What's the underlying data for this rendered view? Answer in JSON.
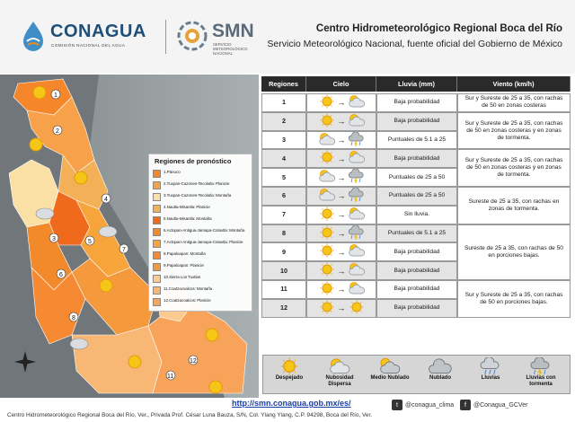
{
  "header": {
    "conagua_name": "CONAGUA",
    "conagua_sub": "COMISIÓN NACIONAL DEL AGUA",
    "smn_name": "SMN",
    "smn_sub": "SERVICIO METEOROLÓGICO NACIONAL",
    "title": "Centro Hidrometeorológico Regional Boca del Río",
    "subtitle": "Servicio Meteorológico Nacional, fuente oficial del Gobierno de México"
  },
  "map": {
    "legend_title": "Regiones de pronóstico",
    "regions": [
      {
        "label": "1.Pánuco",
        "color": "#f5862a"
      },
      {
        "label": "2.Tuxpan-Cazones-Tecolutla: Planicie",
        "color": "#f7a14a"
      },
      {
        "label": "3.Tuxpan-Cazones-Tecolutla: Montaña",
        "color": "#fbe0a5"
      },
      {
        "label": "4.Nautla-Misantla: Planicie",
        "color": "#f3b056"
      },
      {
        "label": "5.Nautla-Misantla: Montaña",
        "color": "#f06a1d"
      },
      {
        "label": "6.Actopan-Antigua-Jamapa-Cotaxtla: Montaña",
        "color": "#f28a2c"
      },
      {
        "label": "7.Actopan-Antigua-Jamapa-Cotaxtla: Planicie",
        "color": "#f7a53b"
      },
      {
        "label": "8.Papaloapan: Montaña",
        "color": "#f58a33"
      },
      {
        "label": "9.Papaloapan: Planicie",
        "color": "#f49a3c"
      },
      {
        "label": "10.Sierra Los Tuxtlas",
        "color": "#fcc98f"
      },
      {
        "label": "11.Coatzacoalcos: Montaña",
        "color": "#f9b776"
      },
      {
        "label": "12.Coatzacoalcos: Planicie",
        "color": "#f7a45a"
      }
    ],
    "place_labels": [
      "Pánuco",
      "Tuxpan",
      "Xicotepec de Juárez",
      "Huauchinango",
      "Martínez de la Torre",
      "Perote",
      "Xalapa",
      "Veracruz",
      "Orizaba",
      "Alvarado",
      "Cosamaloapan",
      "San Andrés Tuxtla",
      "Acayucan",
      "Coatzacoalcos",
      "Minatitlán",
      "Las Choapas",
      "Tierra Blanca",
      "Catemaco"
    ]
  },
  "table": {
    "headers": {
      "regiones": "Regiones",
      "cielo": "Cielo",
      "lluvia": "Lluvia (mm)",
      "viento": "Viento (km/h)"
    },
    "rows": [
      {
        "region": "1",
        "from": "sunny",
        "to": "cloudy",
        "lluvia": "Baja probabilidad"
      },
      {
        "region": "2",
        "from": "sunny",
        "to": "cloudy",
        "lluvia": "Baja probabilidad"
      },
      {
        "region": "3",
        "from": "cloudy",
        "to": "storm",
        "lluvia": "Puntuales de 5.1 a 25"
      },
      {
        "region": "4",
        "from": "sunny",
        "to": "cloudy",
        "lluvia": "Baja probabilidad"
      },
      {
        "region": "5",
        "from": "cloudy",
        "to": "storm",
        "lluvia": "Puntuales de 25 a 50"
      },
      {
        "region": "6",
        "from": "cloudy",
        "to": "storm",
        "lluvia": "Puntuales de 25 a 50"
      },
      {
        "region": "7",
        "from": "sunny",
        "to": "cloudy",
        "lluvia": "Sin lluvia."
      },
      {
        "region": "8",
        "from": "sunny",
        "to": "storm",
        "lluvia": "Puntuales de 5.1 a 25"
      },
      {
        "region": "9",
        "from": "sunny",
        "to": "cloudy",
        "lluvia": "Baja probabilidad"
      },
      {
        "region": "10",
        "from": "sunny",
        "to": "cloudy",
        "lluvia": "Baja probabilidad"
      },
      {
        "region": "11",
        "from": "sunny",
        "to": "cloudy",
        "lluvia": "Baja probabilidad"
      },
      {
        "region": "12",
        "from": "sunny",
        "to": "sunny",
        "lluvia": "Baja probabilidad"
      }
    ],
    "viento": [
      {
        "text": "Sur y Sureste de 25 a 35, con rachas de 50 en zonas costeras"
      },
      {
        "text": "Sur y Sureste de 25 a 35, con rachas de 50 en zonas costeras y en zonas de tormenta."
      },
      {
        "text": "Sur y Sureste de 25 a 35, con rachas de 50 en zonas costeras y en zonas de tormenta."
      },
      {
        "text": "Sureste de 25 a 35, con rachas en zonas de tormenta."
      },
      {
        "text": "Sureste de 25 a 35, con rachas de 50 en porciones bajas."
      },
      {
        "text": "Sur y Sureste de 25 a 35, con rachas de 50 en porciones bajas."
      }
    ]
  },
  "icon_legend": [
    {
      "label": "Despejado",
      "icon": "sun-icon"
    },
    {
      "label": "Nubosidad Dispersa",
      "icon": "sun-cloud-icon"
    },
    {
      "label": "Medio Nublado",
      "icon": "partly-cloudy-icon"
    },
    {
      "label": "Nublado",
      "icon": "cloud-icon"
    },
    {
      "label": "Lluvias",
      "icon": "rain-icon"
    },
    {
      "label": "Lluvias con tormenta",
      "icon": "storm-icon"
    }
  ],
  "footer": {
    "url": "http://smn.conagua.gob.mx/es/",
    "twitter": "@conagua_clima",
    "facebook": "@Conagua_GCVer",
    "address": "Centro Hidrometeorológico Regional Boca del Río, Ver., Privada Prof. César Luna Bauza, S/N, Col. Ylang Ylang, C.P. 94298, Boca del Río, Ver."
  }
}
